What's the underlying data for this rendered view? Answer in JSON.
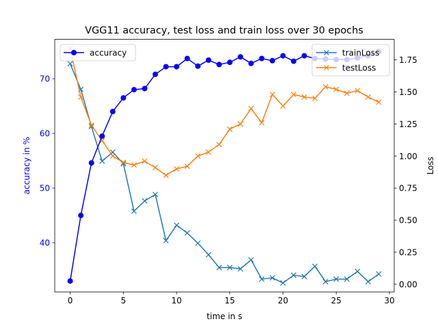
{
  "chart_data": {
    "type": "line",
    "title": "VGG11 accuracy, test loss and train loss over 30 epochs",
    "xlabel": "time in s",
    "ylabel_left": "accuracy in %",
    "ylabel_right": "Loss",
    "xlim": [
      -1.45,
      30.45
    ],
    "ylim_left": [
      31.0,
      77.2
    ],
    "ylim_right": [
      -0.06,
      1.91
    ],
    "x_ticks": [
      0,
      5,
      10,
      15,
      20,
      25,
      30
    ],
    "y_left_ticks": [
      40,
      50,
      60,
      70
    ],
    "y_right_ticks": [
      0.0,
      0.25,
      0.5,
      0.75,
      1.0,
      1.25,
      1.5,
      1.75
    ],
    "y_right_tick_labels": [
      "0.00",
      "0.25",
      "0.50",
      "0.75",
      "1.00",
      "1.25",
      "1.50",
      "1.75"
    ],
    "x": [
      0,
      1,
      2,
      3,
      4,
      5,
      6,
      7,
      8,
      9,
      10,
      11,
      12,
      13,
      14,
      15,
      16,
      17,
      18,
      19,
      20,
      21,
      22,
      23,
      24,
      25,
      26,
      27,
      28,
      29
    ],
    "legend_left": {
      "position": "upper left",
      "entries": [
        "accuracy"
      ]
    },
    "legend_right": {
      "position": "upper right",
      "entries": [
        "trainLoss",
        "testLoss"
      ]
    },
    "series": [
      {
        "name": "accuracy",
        "axis": "left",
        "color": "#0000ff",
        "marker": "circle",
        "values": [
          33.0,
          45.0,
          54.6,
          59.5,
          64.0,
          66.5,
          68.0,
          68.2,
          70.8,
          72.2,
          72.2,
          73.7,
          72.3,
          73.4,
          72.6,
          73.0,
          74.0,
          72.8,
          73.7,
          73.3,
          74.2,
          73.2,
          74.2,
          73.7,
          73.6,
          73.5,
          73.5,
          73.8,
          74.2,
          75.0
        ]
      },
      {
        "name": "trainLoss",
        "axis": "right",
        "color": "#1f77b4",
        "marker": "x",
        "values": [
          1.72,
          1.52,
          1.23,
          0.96,
          1.03,
          0.94,
          0.57,
          0.65,
          0.7,
          0.34,
          0.46,
          0.4,
          0.32,
          0.23,
          0.13,
          0.13,
          0.12,
          0.19,
          0.04,
          0.05,
          0.01,
          0.07,
          0.06,
          0.14,
          0.02,
          0.04,
          0.04,
          0.1,
          0.02,
          0.08
        ]
      },
      {
        "name": "testLoss",
        "axis": "right",
        "color": "#ff7f0e",
        "marker": "x",
        "values": [
          1.84,
          1.46,
          1.24,
          1.12,
          1.0,
          0.95,
          0.93,
          0.96,
          0.91,
          0.85,
          0.9,
          0.92,
          1.0,
          1.03,
          1.09,
          1.21,
          1.25,
          1.37,
          1.26,
          1.48,
          1.39,
          1.48,
          1.46,
          1.45,
          1.54,
          1.52,
          1.49,
          1.51,
          1.46,
          1.42
        ]
      }
    ]
  }
}
